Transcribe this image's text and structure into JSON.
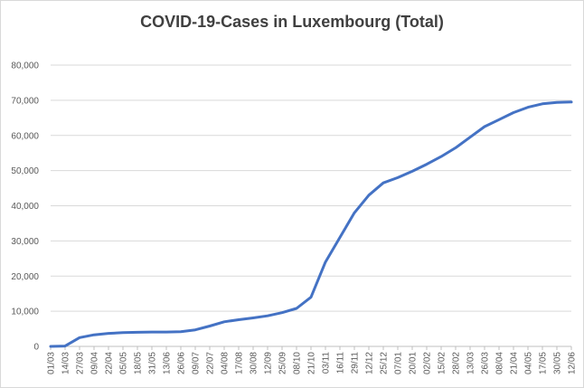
{
  "chart_data": {
    "type": "line",
    "title": "COVID-19-Cases in Luxembourg (Total)",
    "xlabel": "",
    "ylabel": "",
    "ylim": [
      0,
      80000
    ],
    "yticks": [
      "0",
      "10,000",
      "20,000",
      "30,000",
      "40,000",
      "50,000",
      "60,000",
      "70,000",
      "80,000"
    ],
    "grid": true,
    "legend": "none",
    "line_color": "#4472c4",
    "categories": [
      "01/03",
      "14/03",
      "27/03",
      "09/04",
      "22/04",
      "05/05",
      "18/05",
      "31/05",
      "13/06",
      "26/06",
      "09/07",
      "22/07",
      "04/08",
      "17/08",
      "30/08",
      "12/09",
      "25/09",
      "08/10",
      "21/10",
      "03/11",
      "16/11",
      "29/11",
      "12/12",
      "25/12",
      "07/01",
      "20/01",
      "02/02",
      "15/02",
      "28/02",
      "13/03",
      "26/03",
      "08/04",
      "21/04",
      "04/05",
      "17/05",
      "30/05",
      "12/06"
    ],
    "series": [
      {
        "values": [
          0,
          100,
          2500,
          3300,
          3700,
          3900,
          4000,
          4100,
          4100,
          4200,
          4700,
          5800,
          7000,
          7600,
          8100,
          8700,
          9600,
          10800,
          14000,
          24000,
          31000,
          38000,
          43000,
          46500,
          48000,
          49800,
          51800,
          54000,
          56500,
          59500,
          62500,
          64500,
          66500,
          68000,
          69000,
          69400,
          69500
        ]
      }
    ]
  }
}
